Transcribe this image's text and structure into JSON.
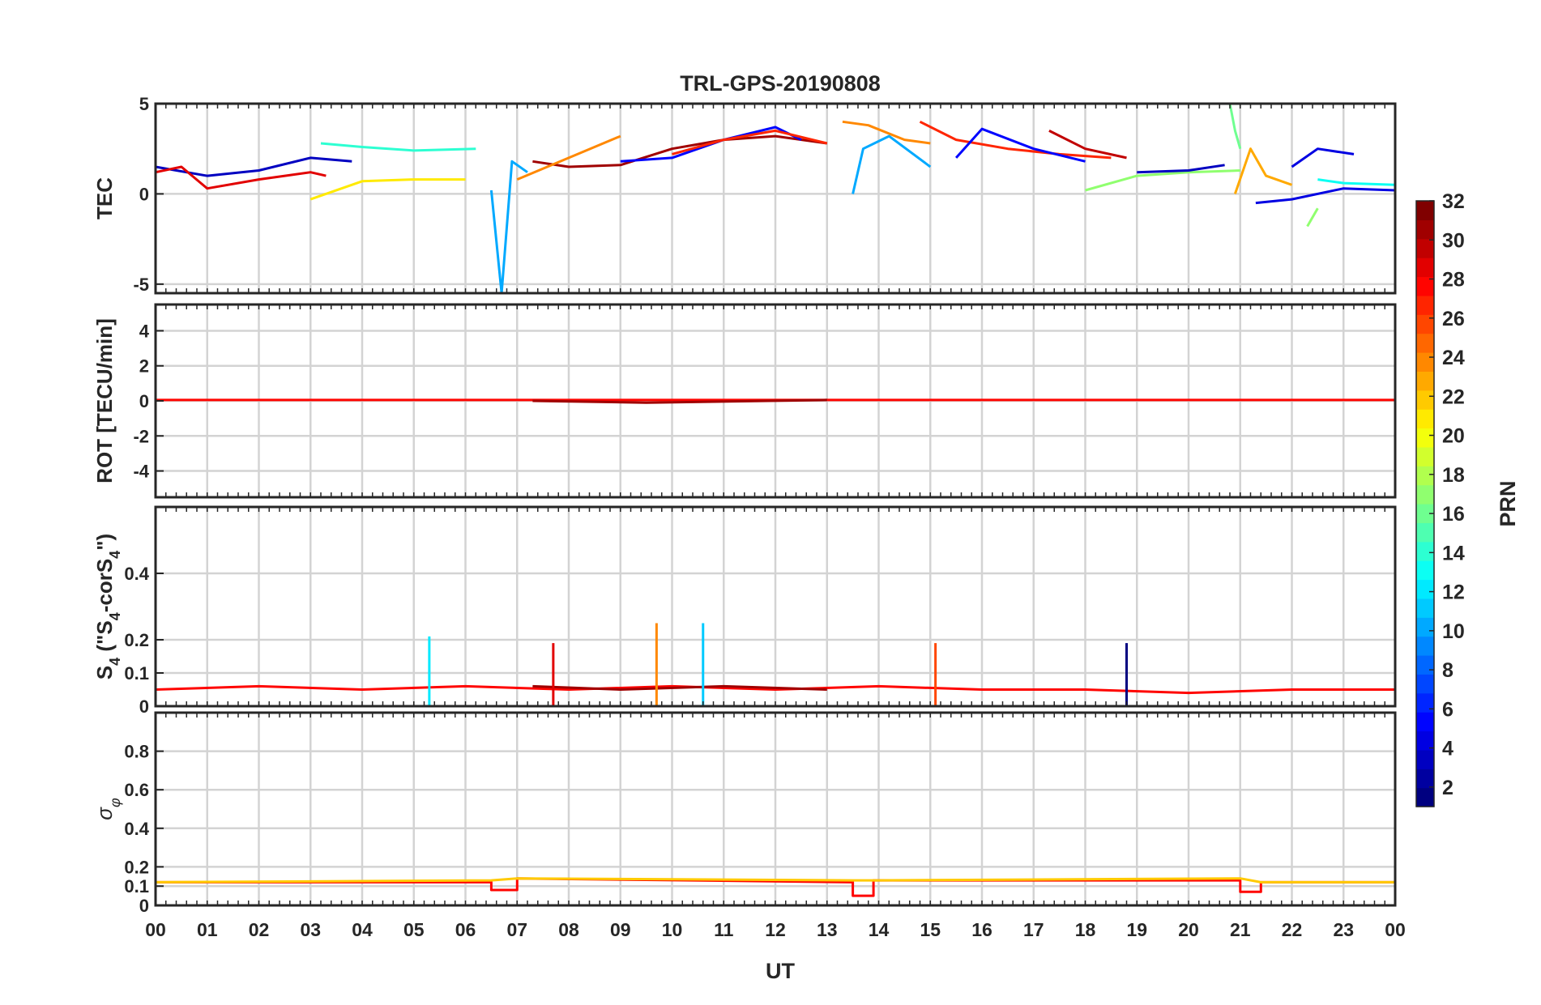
{
  "figure": {
    "title": "TRL-GPS-20190808",
    "xlabel": "UT",
    "x_ticks": [
      "00",
      "01",
      "02",
      "03",
      "04",
      "05",
      "06",
      "07",
      "08",
      "09",
      "10",
      "11",
      "12",
      "13",
      "14",
      "15",
      "16",
      "17",
      "18",
      "19",
      "20",
      "21",
      "22",
      "23",
      "00"
    ]
  },
  "colorbar": {
    "label": "PRN",
    "ticks": [
      2,
      4,
      6,
      8,
      10,
      12,
      14,
      16,
      18,
      20,
      22,
      24,
      26,
      28,
      30,
      32
    ],
    "range": [
      1,
      32
    ],
    "colormap": "jet"
  },
  "chart_data": [
    {
      "type": "line",
      "panel": "TEC",
      "ylabel": "TEC",
      "xlim": [
        0,
        24
      ],
      "ylim": [
        -5.5,
        5
      ],
      "y_ticks": [
        -5,
        0,
        5
      ],
      "grid": true,
      "series": [
        {
          "prn": 3,
          "x": [
            0,
            1,
            2,
            3,
            3.8
          ],
          "y": [
            1.5,
            1.0,
            1.3,
            2.0,
            1.8
          ]
        },
        {
          "prn": 29,
          "x": [
            0,
            0.5,
            1,
            2,
            3,
            3.3
          ],
          "y": [
            1.2,
            1.5,
            0.3,
            0.8,
            1.2,
            1.0
          ]
        },
        {
          "prn": 14,
          "x": [
            3.2,
            4,
            5,
            6.2
          ],
          "y": [
            2.8,
            2.6,
            2.4,
            2.5
          ]
        },
        {
          "prn": 21,
          "x": [
            3,
            4,
            5,
            6
          ],
          "y": [
            -0.3,
            0.7,
            0.8,
            0.8
          ]
        },
        {
          "prn": 10,
          "x": [
            6.5,
            6.7,
            6.9,
            7.2
          ],
          "y": [
            0.2,
            -5.5,
            1.8,
            1.2
          ]
        },
        {
          "prn": 31,
          "x": [
            7.3,
            8,
            9,
            10,
            11,
            12,
            13
          ],
          "y": [
            1.8,
            1.5,
            1.6,
            2.5,
            3.0,
            3.2,
            2.8
          ]
        },
        {
          "prn": 24,
          "x": [
            7,
            8,
            9
          ],
          "y": [
            0.8,
            2.0,
            3.2
          ]
        },
        {
          "prn": 5,
          "x": [
            9,
            10,
            11,
            12,
            12.5
          ],
          "y": [
            1.8,
            2.0,
            3.0,
            3.7,
            3.0
          ]
        },
        {
          "prn": 27,
          "x": [
            10,
            11,
            12,
            13
          ],
          "y": [
            2.2,
            3.0,
            3.5,
            2.8
          ]
        },
        {
          "prn": 24,
          "x": [
            13.3,
            13.8,
            14.5,
            15
          ],
          "y": [
            4.0,
            3.8,
            3.0,
            2.8
          ]
        },
        {
          "prn": 10,
          "x": [
            13.5,
            13.7,
            14.2,
            15
          ],
          "y": [
            0.0,
            2.5,
            3.2,
            1.5
          ]
        },
        {
          "prn": 27,
          "x": [
            14.8,
            15.5,
            16.5,
            17.5,
            18.5
          ],
          "y": [
            4.0,
            3.0,
            2.5,
            2.2,
            2.0
          ]
        },
        {
          "prn": 5,
          "x": [
            15.5,
            16,
            17,
            18
          ],
          "y": [
            2.0,
            3.6,
            2.5,
            1.8
          ]
        },
        {
          "prn": 30,
          "x": [
            17.3,
            18,
            18.8
          ],
          "y": [
            3.5,
            2.5,
            2.0
          ]
        },
        {
          "prn": 17,
          "x": [
            18,
            19,
            20,
            21
          ],
          "y": [
            0.2,
            1.0,
            1.2,
            1.3
          ]
        },
        {
          "prn": 3,
          "x": [
            19,
            20,
            20.7
          ],
          "y": [
            1.2,
            1.3,
            1.6
          ]
        },
        {
          "prn": 16,
          "x": [
            20.8,
            20.9,
            21
          ],
          "y": [
            5.0,
            3.5,
            2.5
          ]
        },
        {
          "prn": 23,
          "x": [
            20.9,
            21.2,
            21.5,
            22
          ],
          "y": [
            0.0,
            2.5,
            1.0,
            0.5
          ]
        },
        {
          "prn": 4,
          "x": [
            21.3,
            22,
            23,
            24
          ],
          "y": [
            -0.5,
            -0.3,
            0.3,
            0.2
          ]
        },
        {
          "prn": 4,
          "x": [
            22,
            22.5,
            23.2
          ],
          "y": [
            1.5,
            2.5,
            2.2
          ]
        },
        {
          "prn": 17,
          "x": [
            22.3,
            22.5
          ],
          "y": [
            -1.8,
            -0.8
          ]
        },
        {
          "prn": 13,
          "x": [
            22.5,
            23,
            24
          ],
          "y": [
            0.8,
            0.6,
            0.5
          ]
        }
      ]
    },
    {
      "type": "line",
      "panel": "ROT",
      "ylabel": "ROT [TECU/min]",
      "xlim": [
        0,
        24
      ],
      "ylim": [
        -5.5,
        5.5
      ],
      "y_ticks": [
        -4,
        -2,
        0,
        2,
        4
      ],
      "grid": true,
      "series": [
        {
          "prn": 28,
          "x": [
            0,
            6,
            12,
            18,
            24
          ],
          "y": [
            0.05,
            0.05,
            0.05,
            0.05,
            0.05
          ]
        },
        {
          "prn": 31,
          "x": [
            7.3,
            9.5,
            13
          ],
          "y": [
            0.0,
            -0.1,
            0.05
          ]
        }
      ]
    },
    {
      "type": "line",
      "panel": "S4",
      "ylabel": "S4 (\"S4-corS4\")",
      "xlim": [
        0,
        24
      ],
      "ylim": [
        0,
        0.6
      ],
      "y_ticks": [
        0,
        0.1,
        0.2,
        0.4
      ],
      "grid": true,
      "series": [
        {
          "prn": 28,
          "x": [
            0,
            2,
            4,
            6,
            8,
            10,
            12,
            14,
            16,
            18,
            20,
            22,
            24
          ],
          "y": [
            0.05,
            0.06,
            0.05,
            0.06,
            0.05,
            0.06,
            0.05,
            0.06,
            0.05,
            0.05,
            0.04,
            0.05,
            0.05
          ]
        },
        {
          "prn": 31,
          "x": [
            7.3,
            9,
            11,
            13
          ],
          "y": [
            0.06,
            0.05,
            0.06,
            0.05
          ]
        },
        {
          "prn": 24,
          "x": [
            9.7
          ],
          "y": [
            0.25
          ]
        },
        {
          "prn": 11,
          "x": [
            10.6
          ],
          "y": [
            0.25
          ]
        },
        {
          "prn": 12,
          "x": [
            5.3
          ],
          "y": [
            0.21
          ]
        },
        {
          "prn": 29,
          "x": [
            7.7
          ],
          "y": [
            0.19
          ]
        },
        {
          "prn": 26,
          "x": [
            15.1
          ],
          "y": [
            0.19
          ]
        },
        {
          "prn": 1,
          "x": [
            18.8
          ],
          "y": [
            0.19
          ]
        }
      ]
    },
    {
      "type": "line",
      "panel": "sigma_phi",
      "ylabel": "σφ",
      "xlim": [
        0,
        24
      ],
      "ylim": [
        0,
        1
      ],
      "y_ticks": [
        0,
        0.1,
        0.2,
        0.4,
        0.6,
        0.8
      ],
      "grid": true,
      "series": [
        {
          "prn": 28,
          "x": [
            0,
            6.5,
            6.5,
            7.0,
            7.0,
            13.5,
            13.5,
            13.9,
            13.9,
            21.0,
            21.0,
            21.4,
            21.4,
            24
          ],
          "y": [
            0.12,
            0.12,
            0.08,
            0.08,
            0.14,
            0.12,
            0.05,
            0.05,
            0.13,
            0.13,
            0.07,
            0.07,
            0.12,
            0.12
          ]
        },
        {
          "prn": 22,
          "x": [
            0,
            6.5,
            7.0,
            13.5,
            13.9,
            21.0,
            21.4,
            24
          ],
          "y": [
            0.12,
            0.13,
            0.14,
            0.13,
            0.13,
            0.14,
            0.12,
            0.12
          ]
        }
      ]
    }
  ]
}
